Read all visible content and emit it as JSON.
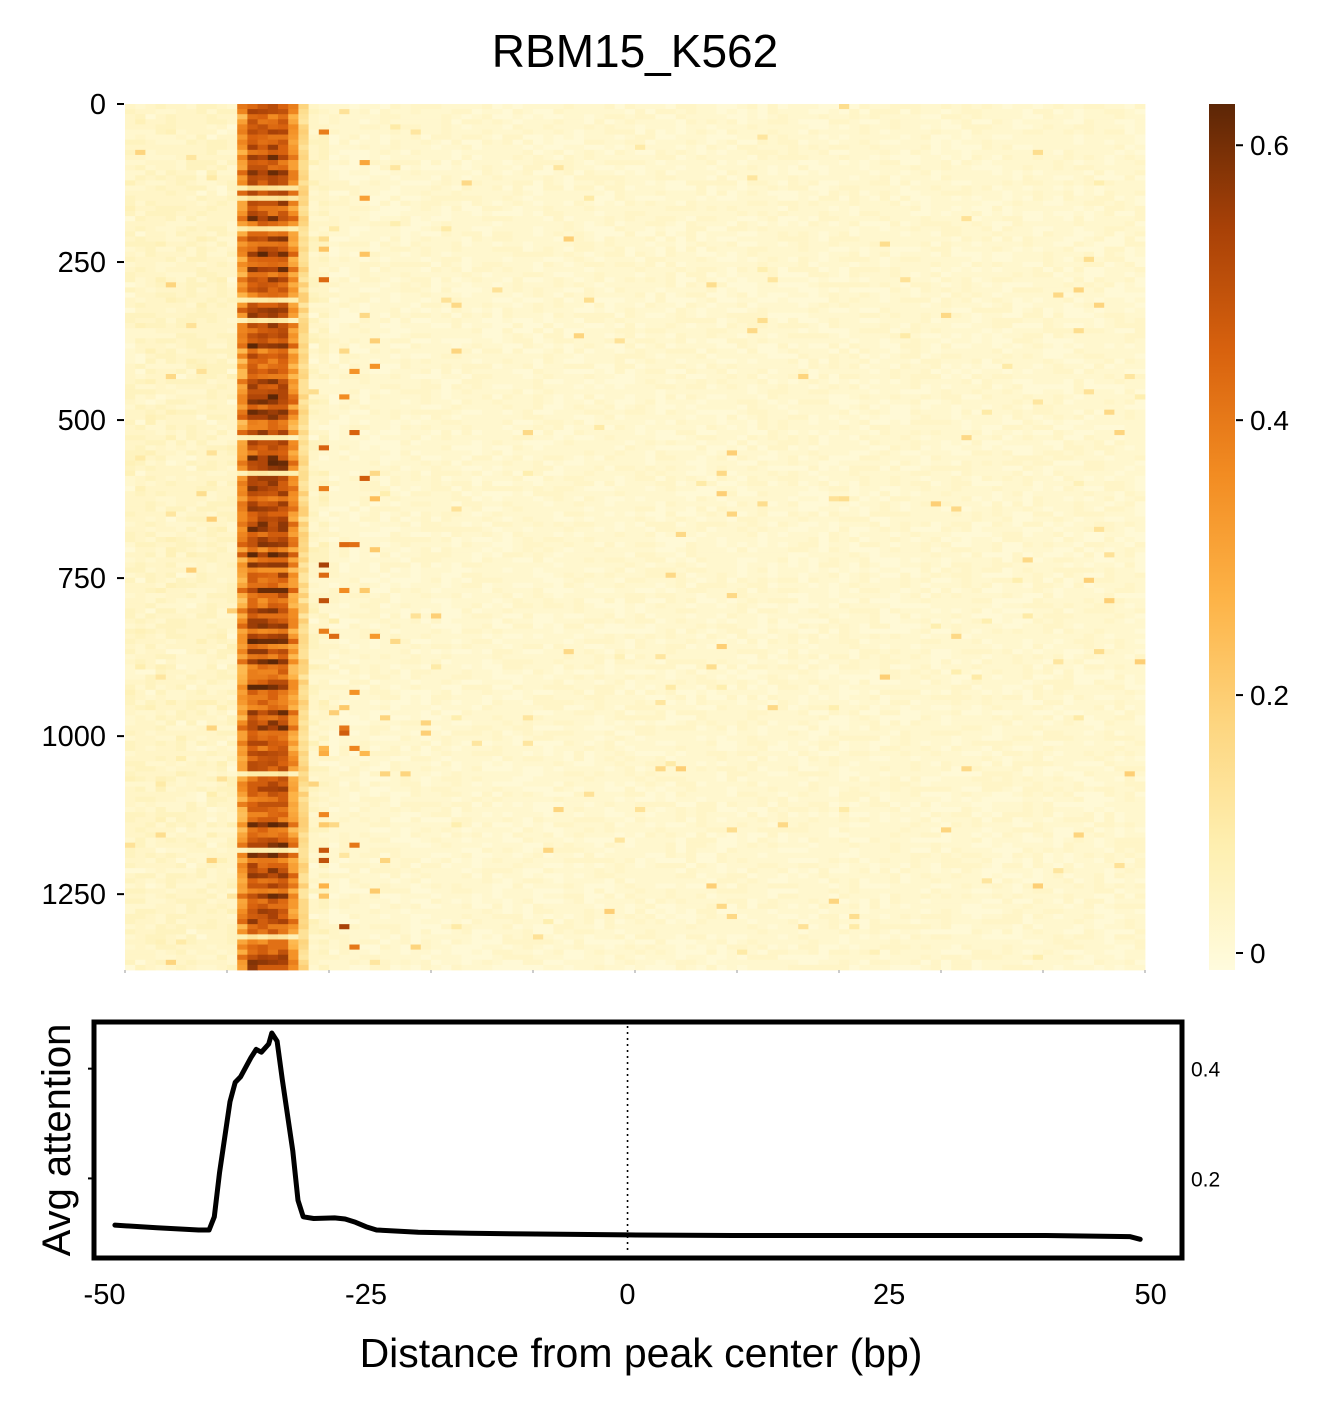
{
  "chart_data": [
    {
      "type": "heatmap",
      "title": "RBM15_K562",
      "x_range": [
        -50,
        50
      ],
      "y_range": [
        0,
        1370
      ],
      "y_ticks": [
        0,
        250,
        500,
        750,
        1000,
        1250
      ],
      "y_tick_labels": [
        "0",
        "250",
        "500",
        "750",
        "1000",
        "1250"
      ],
      "colorbar": {
        "range": [
          0,
          0.63
        ],
        "ticks": [
          0,
          0.2,
          0.4,
          0.6
        ],
        "tick_labels": [
          "0",
          "0.2",
          "0.4",
          "0.6"
        ],
        "colors": [
          "#FFFBDD",
          "#FEEFB0",
          "#FDD57F",
          "#FDB347",
          "#F28C22",
          "#D8620E",
          "#A84107",
          "#5C2606"
        ]
      },
      "high_attention_band_bp": [
        -39,
        -33
      ],
      "secondary_faint_band_bp": [
        -31,
        -25
      ]
    },
    {
      "type": "line",
      "title": "",
      "xlabel": "Distance from peak center (bp)",
      "ylabel": "Avg attention",
      "xlim": [
        -51,
        53
      ],
      "ylim": [
        0.055,
        0.485
      ],
      "x_ticks": [
        -50,
        -25,
        0,
        25,
        50
      ],
      "x_tick_labels": [
        "-50",
        "-25",
        "0",
        "25",
        "50"
      ],
      "y_ticks": [
        0.2,
        0.4
      ],
      "y_tick_labels": [
        "0.2",
        "0.4"
      ],
      "reference_line_x": 0,
      "series": [
        {
          "x": [
            -49,
            -45,
            -41,
            -40,
            -39.5,
            -39,
            -38,
            -37.5,
            -37,
            -36,
            -35.5,
            -35,
            -34.3,
            -34,
            -33.5,
            -33,
            -32,
            -31.5,
            -31,
            -30,
            -28,
            -27,
            -26,
            -25,
            -24,
            -20,
            -15,
            -10,
            -5,
            0,
            10,
            20,
            30,
            40,
            48,
            49
          ],
          "y": [
            0.115,
            0.11,
            0.106,
            0.106,
            0.13,
            0.21,
            0.34,
            0.375,
            0.385,
            0.42,
            0.435,
            0.43,
            0.445,
            0.465,
            0.45,
            0.38,
            0.25,
            0.16,
            0.13,
            0.127,
            0.128,
            0.126,
            0.12,
            0.112,
            0.106,
            0.102,
            0.1,
            0.099,
            0.098,
            0.097,
            0.096,
            0.096,
            0.096,
            0.096,
            0.094,
            0.089
          ]
        }
      ]
    }
  ]
}
